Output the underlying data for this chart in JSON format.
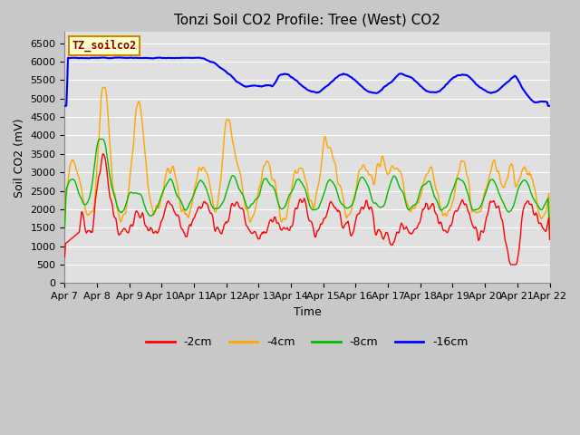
{
  "title": "Tonzi Soil CO2 Profile: Tree (West) CO2",
  "ylabel": "Soil CO2 (mV)",
  "xlabel": "Time",
  "legend_label": "TZ_soilco2",
  "ylim": [
    0,
    6800
  ],
  "yticks": [
    0,
    500,
    1000,
    1500,
    2000,
    2500,
    3000,
    3500,
    4000,
    4500,
    5000,
    5500,
    6000,
    6500
  ],
  "series_labels": [
    "-2cm",
    "-4cm",
    "-8cm",
    "-16cm"
  ],
  "series_colors": [
    "#ff0000",
    "#ffa500",
    "#00bb00",
    "#0000ff"
  ],
  "line_width": 1.0,
  "fig_bg_color": "#c8c8c8",
  "plot_bg_color": "#e0e0e0",
  "grid_color": "#ffffff",
  "title_fontsize": 11,
  "tick_fontsize": 8,
  "label_fontsize": 9,
  "x_tick_labels": [
    "Apr 7",
    "Apr 8",
    "Apr 9",
    "Apr 10",
    "Apr 11",
    "Apr 12",
    "Apr 13",
    "Apr 14",
    "Apr 15",
    "Apr 16",
    "Apr 17",
    "Apr 18",
    "Apr 19",
    "Apr 20",
    "Apr 21",
    "Apr 22"
  ],
  "n_points": 600,
  "figsize": [
    6.4,
    4.8
  ],
  "dpi": 100
}
